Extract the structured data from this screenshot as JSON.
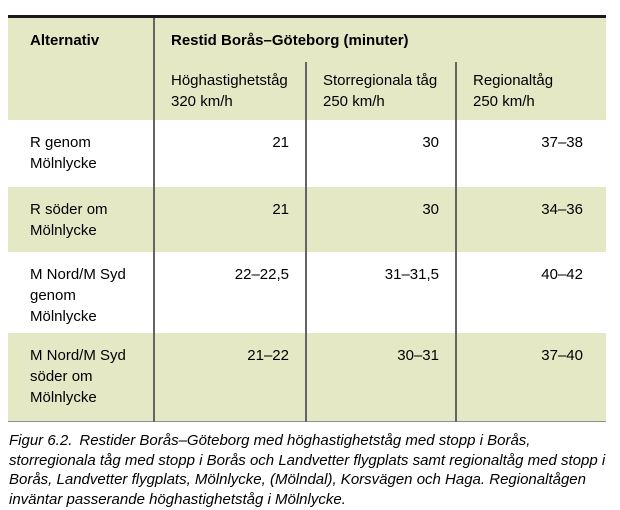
{
  "figure": {
    "table": {
      "corner_header": "Alternativ",
      "group_header": "Restid Borås–Göteborg (minuter)",
      "columns": [
        "Höghastighetståg\n320 km/h",
        "Storregionala tåg\n250 km/h",
        "Regionaltåg\n250 km/h"
      ],
      "rows": [
        {
          "label": "R genom\nMölnlycke",
          "values": [
            "21",
            "30",
            "37–38"
          ]
        },
        {
          "label": "R söder om\nMölnlycke",
          "values": [
            "21",
            "30",
            "34–36"
          ]
        },
        {
          "label": "M Nord/M Syd\ngenom\nMölnlycke",
          "values": [
            "22–22,5",
            "31–31,5",
            "40–42"
          ]
        },
        {
          "label": "M Nord/M Syd\nsöder om\nMölnlycke",
          "values": [
            "21–22",
            "30–31",
            "37–40"
          ]
        }
      ]
    },
    "caption": {
      "label": "Figur 6.2.",
      "text": "Restider Borås–Göteborg med höghastighetståg med stopp i Borås, storregionala tåg med stopp i Borås och Landvetter flygplats samt regionaltåg med stopp i Borås, Landvetter flygplats, Mölnlycke, (Mölndal), Korsvägen och Haga. Regionaltågen inväntar passerande höghastighetståg i Mölnlycke."
    },
    "colors": {
      "row_highlight": "#e4e8c5",
      "grid_line": "#646464",
      "top_border": "#1b1b1b",
      "bottom_border": "#8f8f8f"
    }
  }
}
